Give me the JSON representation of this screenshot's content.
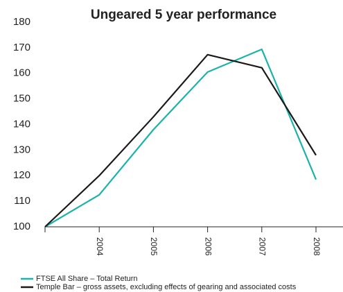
{
  "chart_data": {
    "type": "line",
    "title": "Ungeared 5 year performance",
    "categories": [
      null,
      "2004",
      "2005",
      "2006",
      "2007",
      "2008"
    ],
    "series": [
      {
        "name": "FTSE All Share – Total Return",
        "color": "#1ab3aa",
        "values": [
          100,
          112.5,
          138,
          160.5,
          169.4,
          118.5
        ]
      },
      {
        "name": "Temple Bar – gross assets, excluding effects of gearing and associated costs",
        "color": "#1a1a1a",
        "values": [
          100,
          120,
          143,
          167.3,
          162.2,
          128
        ]
      }
    ],
    "ylim": [
      100,
      180
    ],
    "yticks": [
      100,
      110,
      120,
      130,
      140,
      150,
      160,
      170,
      180
    ]
  }
}
